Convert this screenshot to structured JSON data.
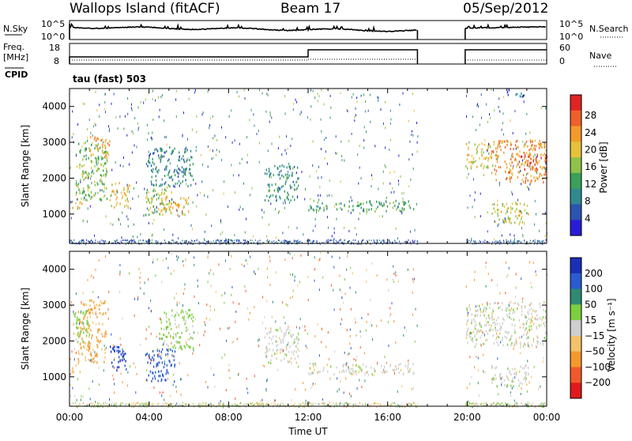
{
  "header": {
    "station": "Wallops Island (fitACF)",
    "beam": "Beam 17",
    "date": "05/Sep/2012"
  },
  "top_panels": {
    "nsky_label": "N.Sky",
    "nsearch_label": "N.Search",
    "nsky_ticks": [
      "10^5",
      "10^0"
    ],
    "nsearch_ticks": [
      "10^5",
      "10^0"
    ],
    "freq_label_1": "Freq.",
    "freq_label_2": "[MHz]",
    "freq_ticks": [
      "18",
      "8"
    ],
    "nave_label": "Nave",
    "nave_ticks": [
      "60",
      "0"
    ],
    "cpid_label": "CPID",
    "cpid_value": "tau (fast) 503"
  },
  "chart_data": [
    {
      "type": "heatmap",
      "name": "power",
      "xlabel": "Time UT",
      "ylabel": "Slant Range [km]",
      "x_ticks": [
        "00:00",
        "04:00",
        "08:00",
        "12:00",
        "16:00",
        "20:00",
        "00:00"
      ],
      "y_ticks": [
        "1000",
        "2000",
        "3000",
        "4000"
      ],
      "xlim_hours": [
        0,
        24
      ],
      "ylim_km": [
        180,
        4500
      ],
      "colorbar_label": "Power [dB]",
      "colorbar_ticks": [
        "4",
        "8",
        "12",
        "16",
        "20",
        "24",
        "28"
      ],
      "colorbar_range": [
        0,
        30
      ],
      "colors": [
        "#2a1bd6",
        "#2b55b0",
        "#2f8a8f",
        "#3aa05a",
        "#8ec24a",
        "#e6c23a",
        "#f39a2a",
        "#f0602a",
        "#e02424"
      ],
      "data_gap_hours": [
        17.5,
        19.9
      ],
      "regions": [
        {
          "t0": 0.0,
          "t1": 0.6,
          "r0": 1150,
          "r1": 1400,
          "v": 20
        },
        {
          "t0": 0.3,
          "t1": 1.9,
          "r0": 1400,
          "r1": 3100,
          "v": 14
        },
        {
          "t0": 1.0,
          "t1": 2.0,
          "r0": 2600,
          "r1": 3200,
          "v": 22
        },
        {
          "t0": 2.0,
          "t1": 3.0,
          "r0": 1200,
          "r1": 1900,
          "v": 18
        },
        {
          "t0": 3.8,
          "t1": 5.2,
          "r0": 1000,
          "r1": 1800,
          "v": 16
        },
        {
          "t0": 4.5,
          "t1": 6.0,
          "r0": 1000,
          "r1": 1500,
          "v": 20
        },
        {
          "t0": 3.9,
          "t1": 6.2,
          "r0": 1800,
          "r1": 2900,
          "v": 9
        },
        {
          "t0": 9.8,
          "t1": 11.5,
          "r0": 1400,
          "r1": 2400,
          "v": 10
        },
        {
          "t0": 12.0,
          "t1": 17.4,
          "r0": 1100,
          "r1": 1400,
          "v": 12
        },
        {
          "t0": 19.9,
          "t1": 21.4,
          "r0": 2300,
          "r1": 3000,
          "v": 18
        },
        {
          "t0": 21.2,
          "t1": 24.0,
          "r0": 1900,
          "r1": 3100,
          "v": 22
        },
        {
          "t0": 22.5,
          "t1": 24.0,
          "r0": 2200,
          "r1": 2700,
          "v": 26
        },
        {
          "t0": 21.2,
          "t1": 23.1,
          "r0": 750,
          "r1": 1350,
          "v": 17
        },
        {
          "t0": 22.0,
          "t1": 22.9,
          "r0": 4300,
          "r1": 4500,
          "v": 6
        }
      ]
    },
    {
      "type": "heatmap",
      "name": "velocity",
      "xlabel": "Time UT",
      "ylabel": "Slant Range [km]",
      "x_ticks": [
        "00:00",
        "04:00",
        "08:00",
        "12:00",
        "16:00",
        "20:00",
        "00:00"
      ],
      "y_ticks": [
        "1000",
        "2000",
        "3000",
        "4000"
      ],
      "xlim_hours": [
        0,
        24
      ],
      "ylim_km": [
        180,
        4500
      ],
      "colorbar_label": "Velocity [m s⁻¹]",
      "colorbar_ticks": [
        "200",
        "100",
        "50",
        "15",
        "−15",
        "−50",
        "−100",
        "−200"
      ],
      "colors": [
        "#1a2fb8",
        "#2a5bd0",
        "#2e8a72",
        "#7ccf3e",
        "#cfcfcf",
        "#f4c26a",
        "#f39a2a",
        "#f05a2a",
        "#e01a1a"
      ],
      "data_gap_hours": [
        17.5,
        19.9
      ],
      "regions": [
        {
          "t0": 0.0,
          "t1": 0.6,
          "r0": 1150,
          "r1": 1400,
          "v": -40
        },
        {
          "t0": 0.4,
          "t1": 1.8,
          "r0": 1400,
          "r1": 3200,
          "v": -50
        },
        {
          "t0": 0.2,
          "t1": 1.0,
          "r0": 2000,
          "r1": 2900,
          "v": 30
        },
        {
          "t0": 2.0,
          "t1": 3.0,
          "r0": 1200,
          "r1": 1900,
          "v": 200
        },
        {
          "t0": 3.8,
          "t1": 5.3,
          "r0": 900,
          "r1": 1800,
          "v": 180
        },
        {
          "t0": 4.5,
          "t1": 6.2,
          "r0": 1800,
          "r1": 2900,
          "v": 25
        },
        {
          "t0": 9.8,
          "t1": 11.5,
          "r0": 1400,
          "r1": 2400,
          "v": 0
        },
        {
          "t0": 12.0,
          "t1": 17.4,
          "r0": 1100,
          "r1": 1400,
          "v": 0
        },
        {
          "t0": 19.9,
          "t1": 24.0,
          "r0": 1900,
          "r1": 3100,
          "v": 0
        },
        {
          "t0": 21.2,
          "t1": 23.1,
          "r0": 750,
          "r1": 1350,
          "v": 0
        }
      ]
    }
  ]
}
